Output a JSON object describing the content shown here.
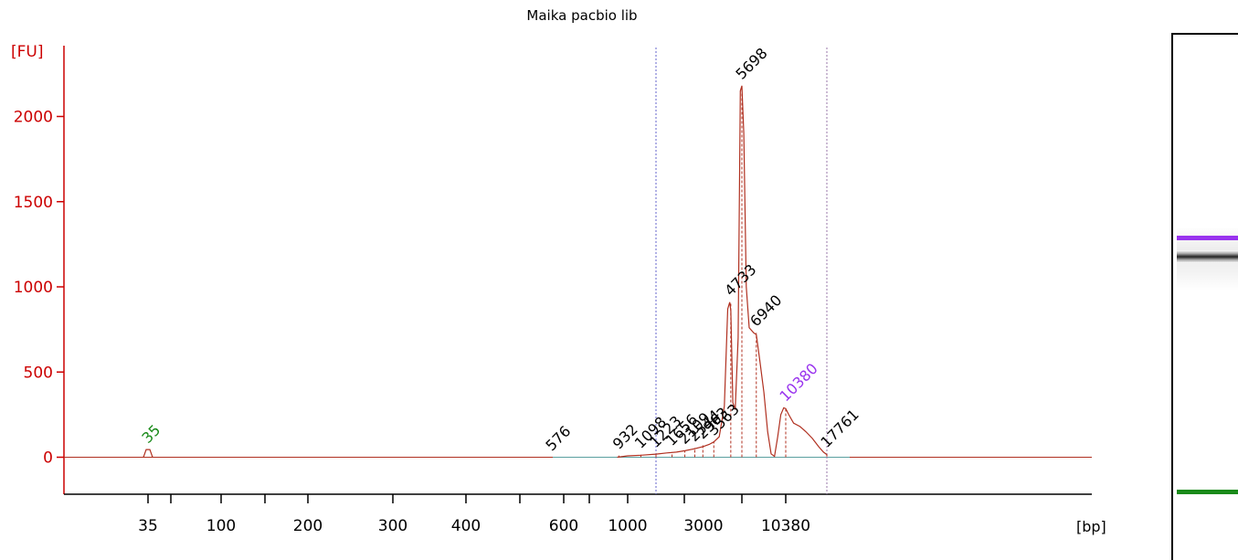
{
  "chart_data": {
    "type": "line",
    "title": "Maika pacbio lib",
    "ylabel": "[FU]",
    "xlabel": "[bp]",
    "ylim": [
      -200,
      2400
    ],
    "y_ticks": [
      0,
      500,
      1000,
      1500,
      2000
    ],
    "x_tick_labels": [
      "35",
      "100",
      "200",
      "300",
      "400",
      "600",
      "1000",
      "3000",
      "10380"
    ],
    "x_scale": "ladder (non-linear, by migration)",
    "colors": {
      "axis": "#cc0000",
      "trace": "#b03020",
      "marker": "#1a8a1a",
      "upper_marker": "#9933ee",
      "peak_label": "#000000",
      "smear_line": "#6666cc",
      "baseline": "#5aa0a0"
    },
    "marker_peaks": [
      {
        "bp": "35",
        "fu": 45,
        "color": "#1a8a1a"
      },
      {
        "bp": "10380",
        "fu": 290,
        "color": "#9933ee"
      }
    ],
    "peak_labels": [
      {
        "bp": "576",
        "fu": 0
      },
      {
        "bp": "932",
        "fu": 10
      },
      {
        "bp": "1098",
        "fu": 15
      },
      {
        "bp": "1223",
        "fu": 20
      },
      {
        "bp": "1656",
        "fu": 30
      },
      {
        "bp": "2109",
        "fu": 40
      },
      {
        "bp": "2544",
        "fu": 55
      },
      {
        "bp": "2963",
        "fu": 70
      },
      {
        "bp": "3563",
        "fu": 90
      },
      {
        "bp": "4733",
        "fu": 910
      },
      {
        "bp": "5698",
        "fu": 2180
      },
      {
        "bp": "6940",
        "fu": 730
      },
      {
        "bp": "17761",
        "fu": 20
      }
    ],
    "grid": false,
    "legend": "none"
  },
  "gel": {
    "bands": [
      {
        "color": "#9933ee",
        "kind": "upper-marker"
      },
      {
        "color": "#222222",
        "kind": "sample"
      },
      {
        "color": "#1a8a1a",
        "kind": "lower-marker"
      }
    ]
  }
}
